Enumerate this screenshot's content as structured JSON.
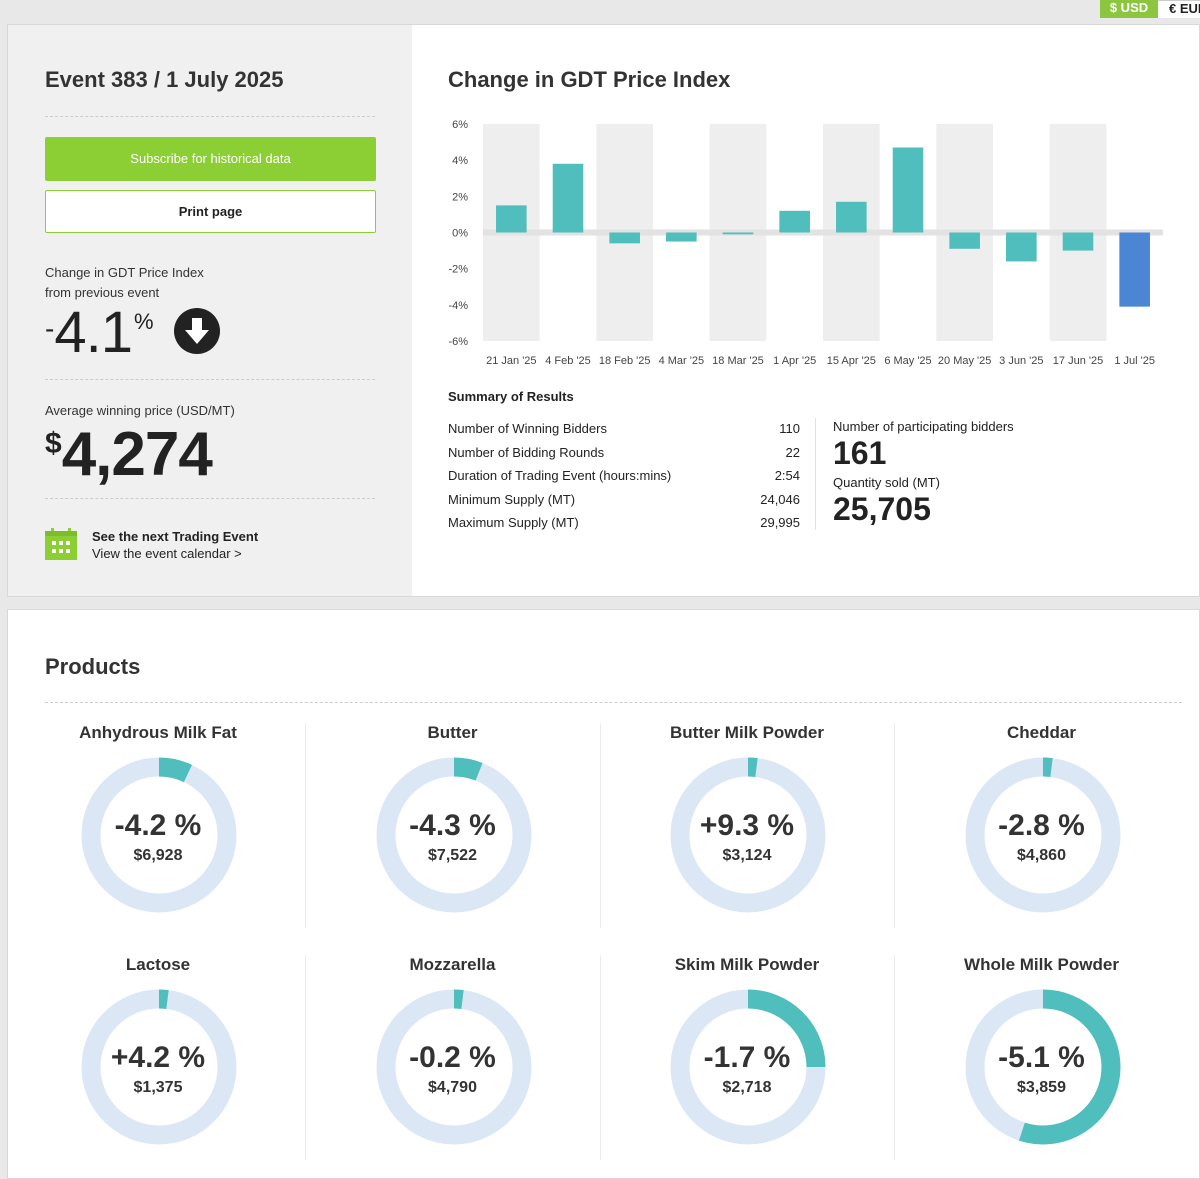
{
  "currency": {
    "usd": "$ USD",
    "eur": "€ EUR"
  },
  "event": {
    "title": "Event 383 / 1 July 2025",
    "subscribe_label": "Subscribe for historical data",
    "print_label": "Print page",
    "change_label_line1": "Change in GDT Price Index",
    "change_label_line2": "from previous event",
    "change_sign": "-",
    "change_value": "4.1",
    "change_unit": "%",
    "avg_label": "Average winning price (USD/MT)",
    "avg_currency": "$",
    "avg_value": "4,274",
    "next_title": "See the next Trading Event",
    "next_link": "View the event calendar >"
  },
  "chart_data": {
    "type": "bar",
    "title": "Change in GDT Price Index",
    "categories": [
      "21 Jan '25",
      "4 Feb '25",
      "18 Feb '25",
      "4 Mar '25",
      "18 Mar '25",
      "1 Apr '25",
      "15 Apr '25",
      "6 May '25",
      "20 May '25",
      "3 Jun '25",
      "17 Jun '25",
      "1 Jul '25"
    ],
    "values": [
      1.5,
      3.8,
      -0.6,
      -0.5,
      -0.1,
      1.2,
      1.7,
      4.7,
      -0.9,
      -1.6,
      -1.0,
      -4.1
    ],
    "ylim": [
      -6,
      6
    ],
    "yticks": [
      "6%",
      "4%",
      "2%",
      "0%",
      "-2%",
      "-4%",
      "-6%"
    ],
    "ytick_values": [
      6,
      4,
      2,
      0,
      -2,
      -4,
      -6
    ],
    "colors": {
      "bar": "#4fbebc",
      "highlight": "#4a86d4",
      "stripe": "#eeeeee"
    },
    "xlabel": "",
    "ylabel": ""
  },
  "summary": {
    "title": "Summary of Results",
    "rows": [
      {
        "label": "Number of Winning Bidders",
        "value": "110"
      },
      {
        "label": "Number of Bidding Rounds",
        "value": "22"
      },
      {
        "label": "Duration of Trading Event (hours:mins)",
        "value": "2:54"
      },
      {
        "label": "Minimum Supply (MT)",
        "value": "24,046"
      },
      {
        "label": "Maximum Supply (MT)",
        "value": "29,995"
      }
    ],
    "bidders_label": "Number of participating bidders",
    "bidders_value": "161",
    "quantity_label": "Quantity sold (MT)",
    "quantity_value": "25,705"
  },
  "products": {
    "title": "Products",
    "items": [
      {
        "name": "Anhydrous Milk Fat",
        "change": "-4.2 %",
        "price": "$6,928",
        "change_num": -4.2
      },
      {
        "name": "Butter",
        "change": "-4.3 %",
        "price": "$7,522",
        "change_num": -4.3
      },
      {
        "name": "Butter Milk Powder",
        "change": "+9.3 %",
        "price": "$3,124",
        "change_num": 9.3
      },
      {
        "name": "Cheddar",
        "change": "-2.8 %",
        "price": "$4,860",
        "change_num": -2.8
      },
      {
        "name": "Lactose",
        "change": "+4.2 %",
        "price": "$1,375",
        "change_num": 4.2
      },
      {
        "name": "Mozzarella",
        "change": "-0.2 %",
        "price": "$4,790",
        "change_num": -0.2
      },
      {
        "name": "Skim Milk Powder",
        "change": "-1.7 %",
        "price": "$2,718",
        "change_num": -1.7
      },
      {
        "name": "Whole Milk Powder",
        "change": "-5.1 %",
        "price": "$3,859",
        "change_num": -5.1
      }
    ],
    "donut_fractions": [
      0.07,
      0.06,
      0.02,
      0.02,
      0.02,
      0.02,
      0.25,
      0.55
    ],
    "colors": {
      "ring": "#dce7f5",
      "arc": "#4fbebc"
    }
  }
}
